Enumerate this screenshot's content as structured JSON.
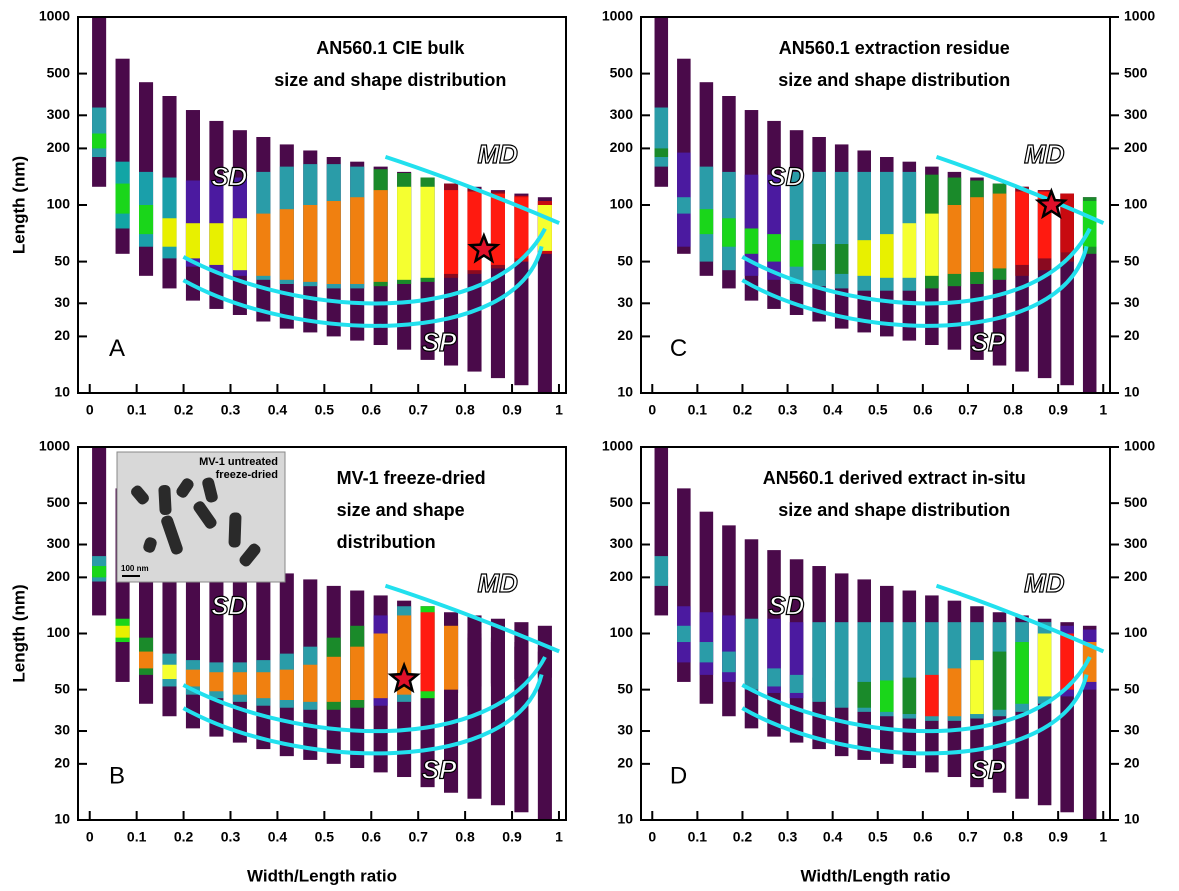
{
  "chart_data": [
    {
      "type": "bar",
      "panel": "A",
      "title": [
        "AN560.1 CIE bulk",
        "size and shape distribution"
      ],
      "ylabel": "Length (nm)",
      "log_y": true,
      "xlim": [
        -0.025,
        1.015
      ],
      "ylim": [
        10,
        1000
      ],
      "xticks": [
        0,
        0.1,
        0.2,
        0.3,
        0.4,
        0.5,
        0.6,
        0.7,
        0.8,
        0.9,
        1
      ],
      "yticks": [
        10,
        20,
        30,
        50,
        100,
        200,
        300,
        500,
        1000
      ],
      "zones": [
        "SD",
        "MD",
        "SP"
      ],
      "x": [
        0.02,
        0.07,
        0.12,
        0.17,
        0.22,
        0.27,
        0.32,
        0.37,
        0.42,
        0.47,
        0.52,
        0.57,
        0.62,
        0.67,
        0.72,
        0.77,
        0.82,
        0.87,
        0.92,
        0.97
      ],
      "bars": {
        "color": "#4a0a4a",
        "low": [
          125,
          55,
          42,
          36,
          31,
          28,
          26,
          24,
          22,
          21,
          20,
          19,
          18,
          17,
          15,
          14,
          13,
          12,
          11,
          10
        ],
        "high": [
          1000,
          600,
          450,
          380,
          320,
          280,
          250,
          230,
          210,
          195,
          180,
          170,
          160,
          150,
          140,
          130,
          125,
          120,
          115,
          110
        ]
      },
      "bands": [
        {
          "low": [
            180,
            75,
            60,
            52,
            47,
            44,
            42,
            40,
            38,
            37,
            36,
            36,
            37,
            38,
            39,
            41,
            43,
            46,
            50,
            55
          ],
          "high": [
            330,
            170,
            150,
            140,
            135,
            135,
            140,
            150,
            160,
            165,
            165,
            160,
            155,
            148,
            140,
            130,
            122,
            118,
            112,
            105
          ],
          "colors": [
            "#2a9ca8",
            "#12a5a5",
            "#1a9faa",
            "#1a9faa",
            "#4b1aa0",
            "#4b1aa0",
            "#4b1aa0",
            "#2a9ca8",
            "#2a9ca8",
            "#2a9ca8",
            "#2a9ca8",
            "#2a9ca8",
            "#1a8a2a",
            "#1a8a2a",
            "#1a8a2a",
            "#8a0a20",
            "#8a0a20",
            "#8a0a20",
            "#c80a10",
            "#c80a10"
          ]
        },
        {
          "low": [
            200,
            90,
            70,
            60,
            52,
            48,
            45,
            42,
            40,
            39,
            38,
            38,
            39,
            40,
            41,
            43,
            45,
            48,
            52,
            57
          ],
          "high": [
            240,
            130,
            100,
            85,
            80,
            80,
            85,
            90,
            95,
            100,
            105,
            110,
            120,
            125,
            125,
            120,
            118,
            115,
            110,
            100
          ],
          "colors": [
            "#1ad61a",
            "#1ad61a",
            "#1ad61a",
            "#e8f000",
            "#e8f000",
            "#e8f000",
            "#f5ff30",
            "#f08010",
            "#f08010",
            "#f08010",
            "#f08010",
            "#f08010",
            "#f08010",
            "#f5ff30",
            "#f5ff30",
            "#ff1a10",
            "#ff1a10",
            "#ff1a10",
            "#ff1a10",
            "#f5ff30"
          ]
        }
      ],
      "star": {
        "x": 0.84,
        "y": 58,
        "color": "#e0102a"
      }
    },
    {
      "type": "bar",
      "panel": "B",
      "title": [
        "MV-1 freeze-dried",
        "size and shape",
        "distribution"
      ],
      "ylabel": "Length (nm)",
      "xlabel": "Width/Length ratio",
      "log_y": true,
      "xlim": [
        -0.025,
        1.015
      ],
      "ylim": [
        10,
        1000
      ],
      "xticks": [
        0,
        0.1,
        0.2,
        0.3,
        0.4,
        0.5,
        0.6,
        0.7,
        0.8,
        0.9,
        1
      ],
      "yticks": [
        10,
        20,
        30,
        50,
        100,
        200,
        300,
        500,
        1000
      ],
      "zones": [
        "SD",
        "MD",
        "SP"
      ],
      "inset": {
        "caption": [
          "MV-1 untreated",
          "freeze-dried"
        ],
        "scale": "100 nm"
      },
      "x": [
        0.02,
        0.07,
        0.12,
        0.17,
        0.22,
        0.27,
        0.32,
        0.37,
        0.42,
        0.47,
        0.52,
        0.57,
        0.62,
        0.67,
        0.72,
        0.77,
        0.82,
        0.87,
        0.92,
        0.97
      ],
      "bars": {
        "color": "#4a0a4a",
        "low": [
          125,
          55,
          42,
          36,
          31,
          28,
          26,
          24,
          22,
          21,
          20,
          19,
          18,
          17,
          15,
          14,
          13,
          12,
          11,
          10
        ],
        "high": [
          1000,
          600,
          450,
          380,
          320,
          280,
          250,
          230,
          210,
          195,
          180,
          170,
          160,
          150,
          140,
          130,
          125,
          120,
          115,
          110
        ]
      },
      "bands": [
        {
          "low": [
            190,
            90,
            60,
            52,
            47,
            45,
            43,
            41,
            40,
            39,
            39,
            40,
            41,
            43,
            45,
            48,
            50,
            52,
            55,
            58
          ],
          "high": [
            260,
            120,
            95,
            78,
            72,
            70,
            70,
            72,
            78,
            85,
            95,
            110,
            125,
            140,
            140,
            120,
            100,
            95,
            90,
            85
          ],
          "colors": [
            "#2a9ca8",
            "#1ad61a",
            "#1a8a2a",
            "#2a9ca8",
            "#2a9ca8",
            "#2a9ca8",
            "#2a9ca8",
            "#2a9ca8",
            "#2a9ca8",
            "#2a9ca8",
            "#1a8a2a",
            "#1a8a2a",
            "#4b1aa0",
            "#2a9ca8",
            "#1ad61a",
            "#4a0a4a",
            "#4a0a4a",
            "#4a0a4a",
            "#4a0a4a",
            "#4a0a4a"
          ]
        },
        {
          "low": [
            200,
            95,
            65,
            57,
            52,
            49,
            47,
            45,
            44,
            43,
            43,
            44,
            45,
            47,
            49,
            50,
            52,
            54,
            57,
            60
          ],
          "high": [
            230,
            110,
            80,
            68,
            64,
            62,
            62,
            62,
            64,
            68,
            75,
            85,
            100,
            125,
            130,
            110,
            95,
            90,
            85,
            80
          ],
          "colors": [
            "#1ad61a",
            "#e8f000",
            "#f08010",
            "#f5ff30",
            "#f08010",
            "#f08010",
            "#f08010",
            "#f08010",
            "#f08010",
            "#f08010",
            "#f08010",
            "#f08010",
            "#f08010",
            "#f08010",
            "#ff1a10",
            "#f08010",
            "#4a0a4a",
            "#4a0a4a",
            "#4a0a4a",
            "#4a0a4a"
          ]
        }
      ],
      "star": {
        "x": 0.67,
        "y": 57,
        "color": "#e0102a"
      }
    },
    {
      "type": "bar",
      "panel": "C",
      "title": [
        "AN560.1 extraction residue",
        "size and shape distribution"
      ],
      "right_axis": true,
      "log_y": true,
      "xlim": [
        -0.025,
        1.015
      ],
      "ylim": [
        10,
        1000
      ],
      "xticks": [
        0,
        0.1,
        0.2,
        0.3,
        0.4,
        0.5,
        0.6,
        0.7,
        0.8,
        0.9,
        1
      ],
      "yticks": [
        10,
        20,
        30,
        50,
        100,
        200,
        300,
        500,
        1000
      ],
      "zones": [
        "SD",
        "MD",
        "SP"
      ],
      "x": [
        0.02,
        0.07,
        0.12,
        0.17,
        0.22,
        0.27,
        0.32,
        0.37,
        0.42,
        0.47,
        0.52,
        0.57,
        0.62,
        0.67,
        0.72,
        0.77,
        0.82,
        0.87,
        0.92,
        0.97
      ],
      "bars": {
        "color": "#4a0a4a",
        "low": [
          125,
          55,
          42,
          36,
          31,
          28,
          26,
          24,
          22,
          21,
          20,
          19,
          18,
          17,
          15,
          14,
          13,
          12,
          11,
          10
        ],
        "high": [
          1000,
          600,
          450,
          380,
          320,
          280,
          250,
          230,
          210,
          195,
          180,
          170,
          160,
          150,
          140,
          130,
          125,
          120,
          115,
          110
        ]
      },
      "bands": [
        {
          "low": [
            160,
            60,
            50,
            45,
            42,
            40,
            38,
            37,
            36,
            35,
            35,
            35,
            36,
            37,
            38,
            40,
            42,
            45,
            50,
            55
          ],
          "high": [
            330,
            190,
            160,
            150,
            145,
            145,
            150,
            150,
            150,
            150,
            150,
            150,
            145,
            140,
            135,
            130,
            125,
            120,
            115,
            110
          ],
          "colors": [
            "#2a9ca8",
            "#4b1aa0",
            "#2a9ca8",
            "#2a9ca8",
            "#4b1aa0",
            "#4b1aa0",
            "#2a9ca8",
            "#2a9ca8",
            "#2a9ca8",
            "#2a9ca8",
            "#2a9ca8",
            "#2a9ca8",
            "#1a8a2a",
            "#1a8a2a",
            "#1a8a2a",
            "#1a8a2a",
            "#8a0a20",
            "#8a0a20",
            "#8a0a20",
            "#1a8a2a"
          ]
        },
        {
          "low": [
            180,
            90,
            70,
            60,
            55,
            50,
            47,
            45,
            43,
            42,
            41,
            41,
            42,
            43,
            44,
            46,
            48,
            52,
            56,
            60
          ],
          "high": [
            200,
            110,
            95,
            85,
            75,
            70,
            65,
            62,
            62,
            65,
            70,
            80,
            90,
            100,
            110,
            115,
            118,
            118,
            115,
            105
          ],
          "colors": [
            "#1a8a2a",
            "#2a9ca8",
            "#1ad61a",
            "#1ad61a",
            "#1ad61a",
            "#1ad61a",
            "#1ad61a",
            "#1a8a2a",
            "#1a8a2a",
            "#e8f000",
            "#e8f000",
            "#f5ff30",
            "#f5ff30",
            "#f08010",
            "#f08010",
            "#f08010",
            "#ff1a10",
            "#ff1a10",
            "#c80a10",
            "#1ad61a"
          ]
        }
      ],
      "star": {
        "x": 0.885,
        "y": 100,
        "color": "#e0102a"
      }
    },
    {
      "type": "bar",
      "panel": "D",
      "title": [
        "AN560.1 derived extract in-situ",
        "size and shape distribution"
      ],
      "xlabel": "Width/Length ratio",
      "right_axis": true,
      "log_y": true,
      "xlim": [
        -0.025,
        1.015
      ],
      "ylim": [
        10,
        1000
      ],
      "xticks": [
        0,
        0.1,
        0.2,
        0.3,
        0.4,
        0.5,
        0.6,
        0.7,
        0.8,
        0.9,
        1
      ],
      "yticks": [
        10,
        20,
        30,
        50,
        100,
        200,
        300,
        500,
        1000
      ],
      "zones": [
        "SD",
        "MD",
        "SP"
      ],
      "x": [
        0.02,
        0.07,
        0.12,
        0.17,
        0.22,
        0.27,
        0.32,
        0.37,
        0.42,
        0.47,
        0.52,
        0.57,
        0.62,
        0.67,
        0.72,
        0.77,
        0.82,
        0.87,
        0.92,
        0.97
      ],
      "bars": {
        "color": "#4a0a4a",
        "low": [
          125,
          55,
          42,
          36,
          31,
          28,
          26,
          24,
          22,
          21,
          20,
          19,
          18,
          17,
          15,
          14,
          13,
          12,
          11,
          10
        ],
        "high": [
          1000,
          600,
          450,
          380,
          320,
          280,
          250,
          230,
          210,
          195,
          180,
          170,
          160,
          150,
          140,
          130,
          125,
          120,
          115,
          110
        ]
      },
      "bands": [
        {
          "low": [
            190,
            70,
            60,
            55,
            50,
            48,
            45,
            43,
            40,
            38,
            36,
            35,
            34,
            34,
            35,
            36,
            38,
            42,
            46,
            50
          ],
          "high": [
            260,
            140,
            130,
            125,
            120,
            120,
            115,
            115,
            115,
            115,
            115,
            115,
            115,
            115,
            115,
            115,
            115,
            115,
            110,
            105
          ],
          "colors": [
            "#2a9ca8",
            "#4b1aa0",
            "#4b1aa0",
            "#4b1aa0",
            "#2a9ca8",
            "#4b1aa0",
            "#4b1aa0",
            "#2a9ca8",
            "#2a9ca8",
            "#2a9ca8",
            "#2a9ca8",
            "#2a9ca8",
            "#2a9ca8",
            "#2a9ca8",
            "#2a9ca8",
            "#2a9ca8",
            "#2a9ca8",
            "#2a9ca8",
            "#4b1aa0",
            "#4b1aa0"
          ]
        },
        {
          "low": [
            180,
            90,
            70,
            62,
            55,
            52,
            48,
            45,
            42,
            40,
            38,
            37,
            36,
            36,
            37,
            39,
            42,
            46,
            50,
            55
          ],
          "high": [
            200,
            110,
            90,
            80,
            72,
            65,
            60,
            58,
            56,
            55,
            56,
            58,
            60,
            65,
            72,
            80,
            90,
            100,
            100,
            90
          ],
          "colors": [
            "#2a9ca8",
            "#2a9ca8",
            "#2a9ca8",
            "#2a9ca8",
            "#2a9ca8",
            "#2a9ca8",
            "#2a9ca8",
            "#2a9ca8",
            "#2a9ca8",
            "#1a8a2a",
            "#1ad61a",
            "#1a8a2a",
            "#ff1a10",
            "#f08010",
            "#f5ff30",
            "#1a8a2a",
            "#1ad61a",
            "#f5ff30",
            "#ff1a10",
            "#f08010"
          ]
        }
      ]
    }
  ]
}
